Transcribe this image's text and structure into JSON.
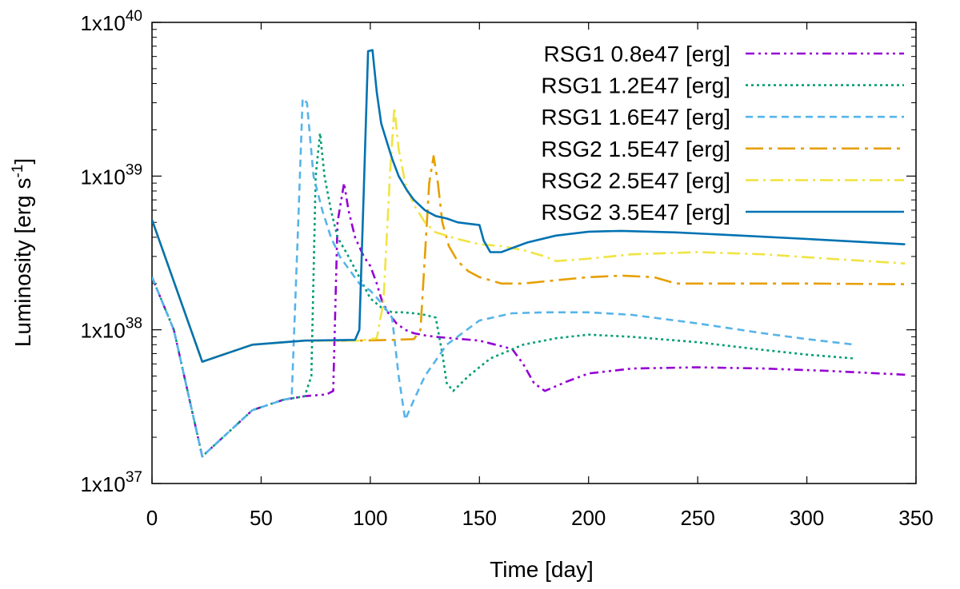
{
  "chart_data": {
    "type": "line",
    "title": "",
    "xlabel": "Time [day]",
    "ylabel": "Luminosity [erg s",
    "ylabel_sup": "-1",
    "ylabel_close": "]",
    "xlim": [
      0,
      350
    ],
    "ylim": [
      1e+37,
      1e+40
    ],
    "yscale": "log",
    "grid": false,
    "legend_position": "top-right",
    "x_ticks": [
      0,
      50,
      100,
      150,
      200,
      250,
      300,
      350
    ],
    "x_tick_labels": [
      "0",
      "50",
      "100",
      "150",
      "200",
      "250",
      "300",
      "350"
    ],
    "y_ticks": [
      {
        "value": 1e+37,
        "base": "1x10",
        "exp": "37"
      },
      {
        "value": 1e+38,
        "base": "1x10",
        "exp": "38"
      },
      {
        "value": 1e+39,
        "base": "1x10",
        "exp": "39"
      },
      {
        "value": 1e+40,
        "base": "1x10",
        "exp": "40"
      }
    ],
    "series": [
      {
        "name": "RSG1 0.8e47 [erg]",
        "color": "#9400d3",
        "dash": "dashdotdot",
        "points": [
          [
            0,
            2.2e+38
          ],
          [
            10,
            1e+38
          ],
          [
            23,
            1.5e+37
          ],
          [
            46,
            3e+37
          ],
          [
            60,
            3.5e+37
          ],
          [
            70,
            3.7e+37
          ],
          [
            80,
            3.8e+37
          ],
          [
            83,
            4e+37
          ],
          [
            85,
            5e+38
          ],
          [
            88,
            9e+38
          ],
          [
            90,
            6e+38
          ],
          [
            93,
            4e+38
          ],
          [
            97,
            3e+38
          ],
          [
            100,
            2.6e+38
          ],
          [
            103,
            2e+38
          ],
          [
            105,
            1.6e+38
          ],
          [
            108,
            1.3e+38
          ],
          [
            112,
            1.1e+38
          ],
          [
            116,
            1e+38
          ],
          [
            120,
            9.5e+37
          ],
          [
            125,
            9.2e+37
          ],
          [
            130,
            9e+37
          ],
          [
            150,
            8.5e+37
          ],
          [
            165,
            7.5e+37
          ],
          [
            170,
            6e+37
          ],
          [
            175,
            4.5e+37
          ],
          [
            180,
            4e+37
          ],
          [
            190,
            4.6e+37
          ],
          [
            200,
            5.2e+37
          ],
          [
            220,
            5.6e+37
          ],
          [
            250,
            5.7e+37
          ],
          [
            280,
            5.6e+37
          ],
          [
            310,
            5.4e+37
          ],
          [
            345,
            5.1e+37
          ]
        ]
      },
      {
        "name": "RSG1 1.2E47 [erg]",
        "color": "#009e73",
        "dash": "dot",
        "points": [
          [
            0,
            2.2e+38
          ],
          [
            10,
            1e+38
          ],
          [
            23,
            1.5e+37
          ],
          [
            46,
            3e+37
          ],
          [
            60,
            3.5e+37
          ],
          [
            70,
            3.7e+37
          ],
          [
            73,
            5e+37
          ],
          [
            75,
            1e+39
          ],
          [
            77,
            1.9e+39
          ],
          [
            79,
            1e+39
          ],
          [
            82,
            6e+38
          ],
          [
            85,
            4e+38
          ],
          [
            90,
            3e+38
          ],
          [
            95,
            2.2e+38
          ],
          [
            100,
            1.6e+38
          ],
          [
            105,
            1.4e+38
          ],
          [
            110,
            1.3e+38
          ],
          [
            115,
            1.3e+38
          ],
          [
            120,
            1.28e+38
          ],
          [
            125,
            1.25e+38
          ],
          [
            130,
            1.2e+38
          ],
          [
            133,
            7e+37
          ],
          [
            135,
            4.5e+37
          ],
          [
            138,
            4e+37
          ],
          [
            145,
            5e+37
          ],
          [
            155,
            6.5e+37
          ],
          [
            170,
            8e+37
          ],
          [
            185,
            8.8e+37
          ],
          [
            200,
            9.3e+37
          ],
          [
            220,
            9e+37
          ],
          [
            250,
            8.3e+37
          ],
          [
            280,
            7.4e+37
          ],
          [
            300,
            6.9e+37
          ],
          [
            322,
            6.5e+37
          ]
        ]
      },
      {
        "name": "RSG1 1.6E47 [erg]",
        "color": "#56b4e9",
        "dash": "dash",
        "points": [
          [
            0,
            2.2e+38
          ],
          [
            10,
            1e+38
          ],
          [
            23,
            1.5e+37
          ],
          [
            46,
            3e+37
          ],
          [
            60,
            3.5e+37
          ],
          [
            64,
            3.6e+37
          ],
          [
            67,
            5e+38
          ],
          [
            69,
            3.2e+39
          ],
          [
            71,
            3e+39
          ],
          [
            74,
            1e+39
          ],
          [
            78,
            6e+38
          ],
          [
            82,
            4e+38
          ],
          [
            86,
            3e+38
          ],
          [
            90,
            2.5e+38
          ],
          [
            95,
            2e+38
          ],
          [
            100,
            1.8e+38
          ],
          [
            105,
            1.5e+38
          ],
          [
            110,
            1.2e+38
          ],
          [
            113,
            5e+37
          ],
          [
            116,
            2.6e+37
          ],
          [
            120,
            3.5e+37
          ],
          [
            125,
            5e+37
          ],
          [
            135,
            8e+37
          ],
          [
            150,
            1.15e+38
          ],
          [
            165,
            1.28e+38
          ],
          [
            180,
            1.3e+38
          ],
          [
            200,
            1.3e+38
          ],
          [
            220,
            1.25e+38
          ],
          [
            250,
            1.1e+38
          ],
          [
            280,
            9.5e+37
          ],
          [
            300,
            8.7e+37
          ],
          [
            322,
            8e+37
          ]
        ]
      },
      {
        "name": "RSG2 1.5E47 [erg]",
        "color": "#e69f00",
        "dash": "longdashdot",
        "points": [
          [
            0,
            5.2e+38
          ],
          [
            23,
            6.2e+37
          ],
          [
            46,
            8e+37
          ],
          [
            70,
            8.5e+37
          ],
          [
            95,
            8.5e+37
          ],
          [
            110,
            8.6e+37
          ],
          [
            120,
            8.7e+37
          ],
          [
            123,
            1e+38
          ],
          [
            125,
            3e+38
          ],
          [
            127,
            9e+38
          ],
          [
            129,
            1.35e+39
          ],
          [
            131,
            9e+38
          ],
          [
            133,
            5e+38
          ],
          [
            136,
            3.5e+38
          ],
          [
            140,
            2.8e+38
          ],
          [
            145,
            2.4e+38
          ],
          [
            150,
            2.2e+38
          ],
          [
            155,
            2.1e+38
          ],
          [
            160,
            2e+38
          ],
          [
            170,
            2e+38
          ],
          [
            185,
            2.1e+38
          ],
          [
            200,
            2.2e+38
          ],
          [
            215,
            2.25e+38
          ],
          [
            230,
            2.2e+38
          ],
          [
            240,
            2e+38
          ],
          [
            260,
            2e+38
          ],
          [
            300,
            2e+38
          ],
          [
            345,
            1.98e+38
          ]
        ]
      },
      {
        "name": "RSG2 2.5E47 [erg]",
        "color": "#f0e442",
        "dash": "dashdot",
        "points": [
          [
            0,
            5.2e+38
          ],
          [
            23,
            6.2e+37
          ],
          [
            46,
            8e+37
          ],
          [
            70,
            8.5e+37
          ],
          [
            95,
            8.5e+37
          ],
          [
            103,
            8.8e+37
          ],
          [
            106,
            1.5e+38
          ],
          [
            109,
            1e+39
          ],
          [
            111,
            2.8e+39
          ],
          [
            113,
            1.5e+39
          ],
          [
            116,
            9e+38
          ],
          [
            120,
            6.5e+38
          ],
          [
            125,
            5e+38
          ],
          [
            130,
            4.3e+38
          ],
          [
            140,
            3.9e+38
          ],
          [
            150,
            3.6e+38
          ],
          [
            160,
            3.5e+38
          ],
          [
            170,
            3.3e+38
          ],
          [
            180,
            3e+38
          ],
          [
            185,
            2.8e+38
          ],
          [
            200,
            2.9e+38
          ],
          [
            220,
            3.1e+38
          ],
          [
            250,
            3.2e+38
          ],
          [
            280,
            3.1e+38
          ],
          [
            310,
            2.9e+38
          ],
          [
            345,
            2.7e+38
          ]
        ]
      },
      {
        "name": "RSG2 3.5E47 [erg]",
        "color": "#0072b2",
        "dash": "solid",
        "points": [
          [
            0,
            5.2e+38
          ],
          [
            23,
            6.2e+37
          ],
          [
            46,
            8e+37
          ],
          [
            70,
            8.5e+37
          ],
          [
            93,
            8.6e+37
          ],
          [
            95,
            1e+38
          ],
          [
            97,
            8e+38
          ],
          [
            99,
            6.5e+39
          ],
          [
            101,
            6.6e+39
          ],
          [
            103,
            3.5e+39
          ],
          [
            105,
            2.2e+39
          ],
          [
            108,
            1.6e+39
          ],
          [
            110,
            1.3e+39
          ],
          [
            113,
            1e+39
          ],
          [
            117,
            8e+38
          ],
          [
            120,
            7e+38
          ],
          [
            125,
            6e+38
          ],
          [
            130,
            5.5e+38
          ],
          [
            135,
            5.3e+38
          ],
          [
            140,
            5e+38
          ],
          [
            145,
            4.9e+38
          ],
          [
            150,
            4.8e+38
          ],
          [
            152,
            3.8e+38
          ],
          [
            155,
            3.2e+38
          ],
          [
            160,
            3.2e+38
          ],
          [
            165,
            3.4e+38
          ],
          [
            172,
            3.7e+38
          ],
          [
            185,
            4.1e+38
          ],
          [
            200,
            4.35e+38
          ],
          [
            215,
            4.4e+38
          ],
          [
            240,
            4.3e+38
          ],
          [
            270,
            4.1e+38
          ],
          [
            300,
            3.9e+38
          ],
          [
            330,
            3.7e+38
          ],
          [
            345,
            3.6e+38
          ]
        ]
      }
    ]
  }
}
